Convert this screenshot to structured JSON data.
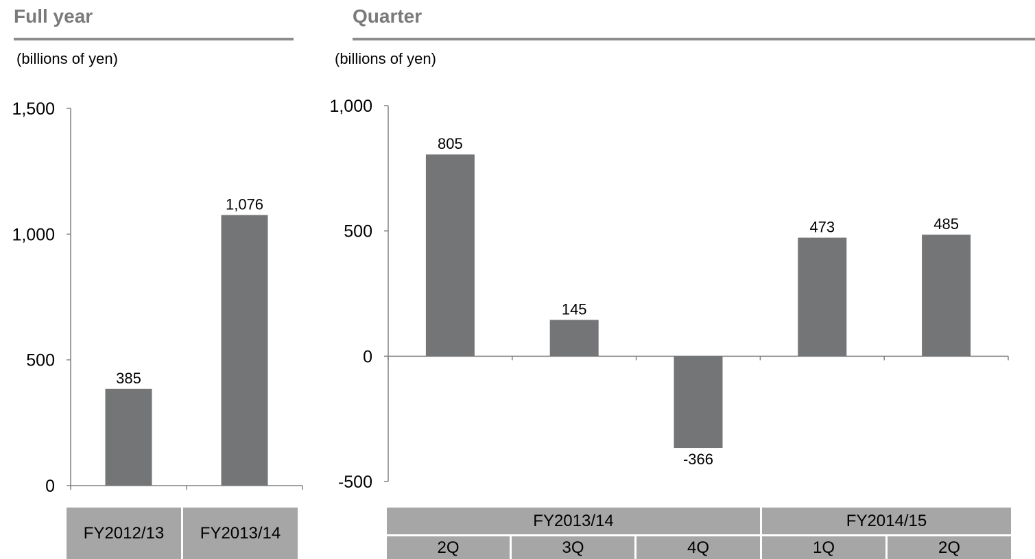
{
  "full_year": {
    "section_title": "Full year",
    "units": "(billions of yen)"
  },
  "quarter": {
    "section_title": "Quarter",
    "units": "(billions of yen)",
    "group_labels": [
      "FY2013/14",
      "FY2014/15"
    ]
  },
  "colors": {
    "bar": "#737577",
    "header_text": "#7a7a7a",
    "rule": "#8c8c8c",
    "category_fill": "#a6a6a6",
    "axis": "#808080"
  },
  "chart_data": [
    {
      "id": "full_year",
      "type": "bar",
      "categories": [
        "FY2012/13",
        "FY2013/14"
      ],
      "values": [
        385,
        1076
      ],
      "data_labels": [
        "385",
        "1,076"
      ],
      "yticks": [
        0,
        500,
        1000,
        1500
      ],
      "ytick_labels": [
        "0",
        "500",
        "1,000",
        "1,500"
      ],
      "ylim": [
        0,
        1500
      ],
      "grid": false
    },
    {
      "id": "quarter",
      "type": "bar",
      "categories": [
        "2Q",
        "3Q",
        "4Q",
        "1Q",
        "2Q"
      ],
      "category_groups": [
        {
          "label": "FY2013/14",
          "span": 3
        },
        {
          "label": "FY2014/15",
          "span": 2
        }
      ],
      "values": [
        805,
        145,
        -366,
        473,
        485
      ],
      "data_labels": [
        "805",
        "145",
        "-366",
        "473",
        "485"
      ],
      "yticks": [
        -500,
        0,
        500,
        1000
      ],
      "ytick_labels": [
        "-500",
        "0",
        "500",
        "1,000"
      ],
      "ylim": [
        -500,
        1000
      ],
      "grid": false
    }
  ]
}
